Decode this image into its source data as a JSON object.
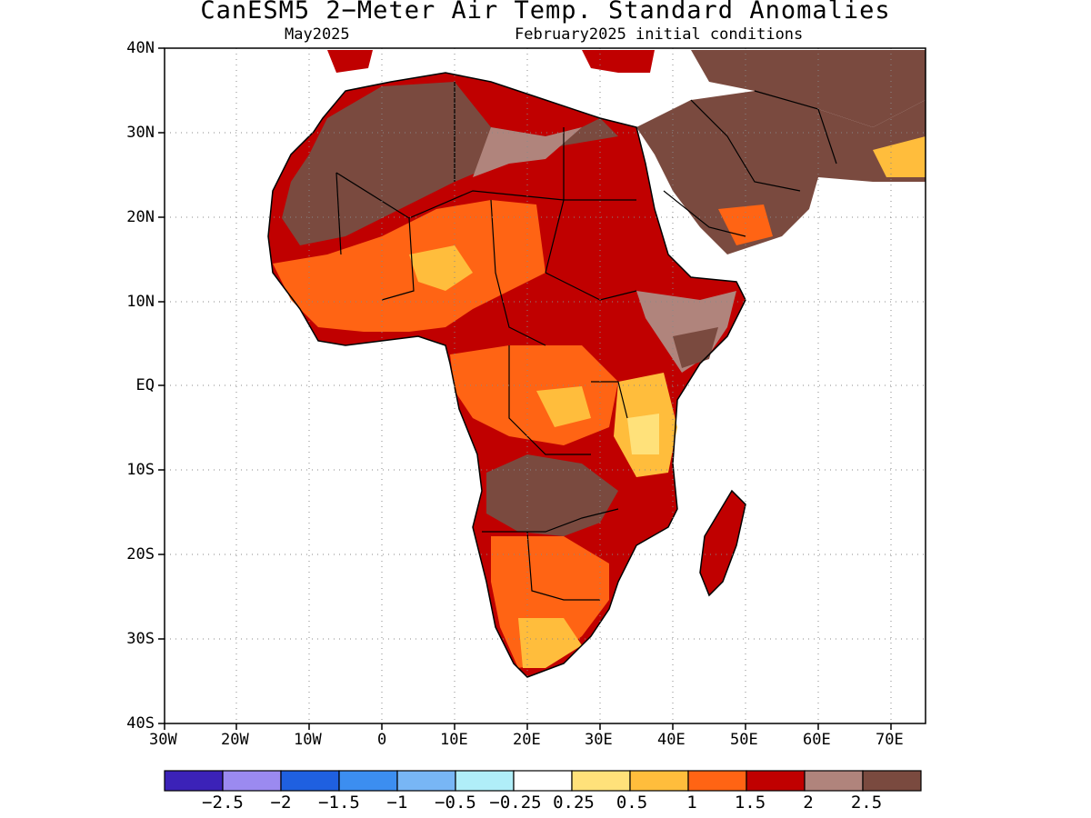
{
  "title": "CanESM5 2−Meter Air Temp. Standard Anomalies",
  "valid_month": "May2025",
  "init_conditions": "February2025 initial conditions",
  "axes": {
    "lon_labels": [
      "30W",
      "20W",
      "10W",
      "0",
      "10E",
      "20E",
      "30E",
      "40E",
      "50E",
      "60E",
      "70E"
    ],
    "lat_labels": [
      "40N",
      "30N",
      "20N",
      "10N",
      "EQ",
      "10S",
      "20S",
      "30S",
      "40S"
    ]
  },
  "colorbar": {
    "colors": [
      "#3b22b8",
      "#9b8af0",
      "#1f60e0",
      "#3c8ef0",
      "#78b6f5",
      "#b0eef8",
      "#ffffff",
      "#ffe17a",
      "#ffbd3c",
      "#ff6414",
      "#c00000",
      "#b0847c",
      "#7a4a3f"
    ],
    "labels": [
      "−2.5",
      "−2",
      "−1.5",
      "−1",
      "−0.5",
      "−0.25",
      "0.25",
      "0.5",
      "1",
      "1.5",
      "2",
      "2.5"
    ]
  },
  "colors": {
    "hot_strong": "#7a4a3f",
    "hot_2": "#b0847c",
    "hot_15": "#c00000",
    "hot_1": "#ff6414",
    "hot_05": "#ffbd3c",
    "hot_025": "#ffe17a",
    "cool_025": "#b0eef8"
  }
}
